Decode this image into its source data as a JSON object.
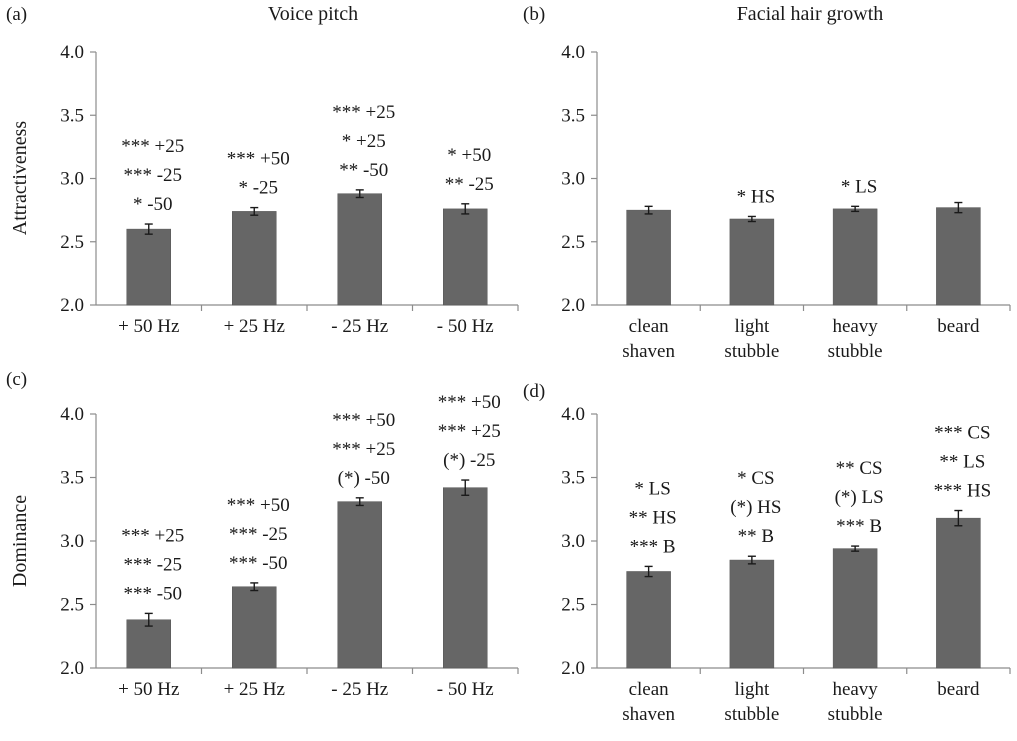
{
  "chart_data": [
    {
      "panel": "(a)",
      "type": "bar",
      "title": "Voice pitch",
      "ylabel": "Attractiveness",
      "ylim": [
        2.0,
        4.0
      ],
      "yticks": [
        "2.0",
        "2.5",
        "3.0",
        "3.5",
        "4.0"
      ],
      "categories": [
        [
          "+ 50 Hz"
        ],
        [
          "+ 25 Hz"
        ],
        [
          "- 25 Hz"
        ],
        [
          "- 50 Hz"
        ]
      ],
      "values": [
        2.6,
        2.74,
        2.88,
        2.76
      ],
      "errors": [
        0.04,
        0.03,
        0.03,
        0.04
      ],
      "annotations": [
        [
          "*** +25",
          "*** -25",
          "* -50"
        ],
        [
          "*** +50",
          "* -25"
        ],
        [
          "*** +25",
          "* +25",
          "** -50"
        ],
        [
          "* +50",
          "** -25"
        ]
      ]
    },
    {
      "panel": "(b)",
      "type": "bar",
      "title": "Facial hair growth",
      "ylabel": "",
      "ylim": [
        2.0,
        4.0
      ],
      "yticks": [
        "2.0",
        "2.5",
        "3.0",
        "3.5",
        "4.0"
      ],
      "categories": [
        [
          "clean",
          "shaven"
        ],
        [
          "light",
          "stubble"
        ],
        [
          "heavy",
          "stubble"
        ],
        [
          "beard"
        ]
      ],
      "values": [
        2.75,
        2.68,
        2.76,
        2.77
      ],
      "errors": [
        0.03,
        0.02,
        0.02,
        0.04
      ],
      "annotations": [
        [],
        [
          "* HS"
        ],
        [
          "* LS"
        ],
        []
      ]
    },
    {
      "panel": "(c)",
      "type": "bar",
      "title": "",
      "ylabel": "Dominance",
      "ylim": [
        2.0,
        4.0
      ],
      "yticks": [
        "2.0",
        "2.5",
        "3.0",
        "3.5",
        "4.0"
      ],
      "categories": [
        [
          "+ 50 Hz"
        ],
        [
          "+ 25 Hz"
        ],
        [
          "- 25 Hz"
        ],
        [
          "- 50 Hz"
        ]
      ],
      "values": [
        2.38,
        2.64,
        3.31,
        3.42
      ],
      "errors": [
        0.05,
        0.03,
        0.03,
        0.06
      ],
      "annotations": [
        [
          "*** +25",
          "*** -25",
          "*** -50"
        ],
        [
          "*** +50",
          "***  -25",
          "*** -50"
        ],
        [
          "*** +50",
          "*** +25",
          "(*) -50"
        ],
        [
          "*** +50",
          "*** +25",
          "(*) -25"
        ]
      ]
    },
    {
      "panel": "(d)",
      "type": "bar",
      "title": "",
      "ylabel": "",
      "ylim": [
        2.0,
        4.0
      ],
      "yticks": [
        "2.0",
        "2.5",
        "3.0",
        "3.5",
        "4.0"
      ],
      "categories": [
        [
          "clean",
          "shaven"
        ],
        [
          "light",
          "stubble"
        ],
        [
          "heavy",
          "stubble"
        ],
        [
          "beard"
        ]
      ],
      "values": [
        2.76,
        2.85,
        2.94,
        3.18
      ],
      "errors": [
        0.04,
        0.03,
        0.02,
        0.06
      ],
      "annotations": [
        [
          "* LS",
          "** HS",
          "*** B"
        ],
        [
          "* CS",
          "(*) HS",
          "** B"
        ],
        [
          "** CS",
          "(*) LS",
          "*** B"
        ],
        [
          "*** CS",
          "** LS",
          "*** HS"
        ]
      ]
    }
  ]
}
